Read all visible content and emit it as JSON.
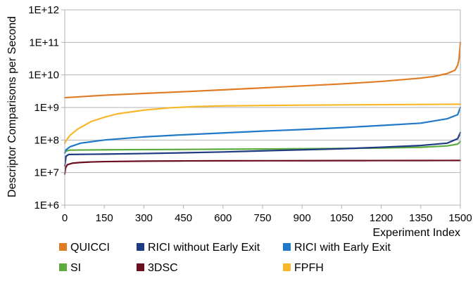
{
  "chart_data": {
    "type": "line",
    "title": "",
    "xlabel": "Experiment Index",
    "ylabel": "Descriptor Comparisons per Second",
    "xlim": [
      0,
      1500
    ],
    "ylim": [
      1000000,
      1000000000000
    ],
    "y_scale": "log",
    "grid": true,
    "legend_position": "bottom",
    "x_ticks": [
      "0",
      "150",
      "300",
      "450",
      "600",
      "750",
      "900",
      "1050",
      "1200",
      "1350",
      "1500"
    ],
    "y_ticks": [
      "1E+12",
      "1E+11",
      "1E+10",
      "1E+9",
      "1E+8",
      "1E+7",
      "1E+6"
    ],
    "x_tick_values": [
      0,
      150,
      300,
      450,
      600,
      750,
      900,
      1050,
      1200,
      1350,
      1500
    ],
    "y_tick_values": [
      1000000000000,
      100000000000,
      10000000000,
      1000000000,
      100000000,
      10000000,
      1000000
    ],
    "series": [
      {
        "name": "QUICCI",
        "color": "#e07b25",
        "x": [
          0,
          150,
          300,
          450,
          600,
          750,
          900,
          1050,
          1200,
          1350,
          1400,
          1450,
          1480,
          1490,
          1495,
          1500
        ],
        "y": [
          2000000000,
          2380000000,
          2700000000,
          3050000000,
          3480000000,
          4000000000,
          4600000000,
          5300000000,
          6300000000,
          8000000000,
          9000000000,
          11000000000,
          14000000000,
          20000000000,
          30000000000,
          100000000000
        ]
      },
      {
        "name": "RICI without Early Exit",
        "color": "#1e3a82",
        "x": [
          0,
          5,
          15,
          150,
          300,
          450,
          600,
          750,
          900,
          1050,
          1200,
          1350,
          1450,
          1490,
          1500
        ],
        "y": [
          16000000,
          32000000,
          36000000,
          37000000,
          38500000,
          40500000,
          43000000,
          46500000,
          50000000,
          54000000,
          60000000,
          68000000,
          80000000,
          110000000,
          170000000
        ]
      },
      {
        "name": "RICI with Early Exit",
        "color": "#1f78c8",
        "x": [
          0,
          5,
          20,
          60,
          150,
          300,
          450,
          600,
          750,
          900,
          1050,
          1200,
          1350,
          1450,
          1490,
          1500
        ],
        "y": [
          40000000,
          50000000,
          62000000,
          80000000,
          100000000,
          125000000,
          145000000,
          165000000,
          188000000,
          210000000,
          240000000,
          280000000,
          330000000,
          450000000,
          600000000,
          1000000000
        ]
      },
      {
        "name": "SI",
        "color": "#5bac3c",
        "x": [
          0,
          5,
          20,
          150,
          300,
          450,
          600,
          750,
          900,
          1050,
          1200,
          1350,
          1450,
          1490,
          1500
        ],
        "y": [
          40000000,
          46000000,
          49000000,
          50000000,
          50800000,
          51500000,
          52200000,
          53000000,
          54000000,
          55000000,
          57000000,
          60000000,
          66000000,
          75000000,
          90000000
        ]
      },
      {
        "name": "3DSC",
        "color": "#6b0e1e",
        "x": [
          0,
          3,
          10,
          30,
          60,
          100,
          150,
          300,
          450,
          600,
          750,
          900,
          1050,
          1200,
          1350,
          1500
        ],
        "y": [
          9000000,
          14000000,
          17500000,
          19500000,
          20500000,
          21200000,
          21700000,
          22500000,
          22800000,
          23000000,
          23100000,
          23200000,
          23300000,
          23400000,
          23500000,
          23600000
        ]
      },
      {
        "name": "FPFH",
        "color": "#f9b829",
        "x": [
          0,
          5,
          20,
          50,
          80,
          100,
          150,
          200,
          300,
          400,
          500,
          600,
          750,
          900,
          1050,
          1200,
          1350,
          1500
        ],
        "y": [
          80000000,
          95000000,
          140000000,
          220000000,
          300000000,
          370000000,
          500000000,
          640000000,
          830000000,
          980000000,
          1070000000,
          1120000000,
          1150000000,
          1180000000,
          1200000000,
          1220000000,
          1240000000,
          1260000000
        ]
      }
    ]
  }
}
